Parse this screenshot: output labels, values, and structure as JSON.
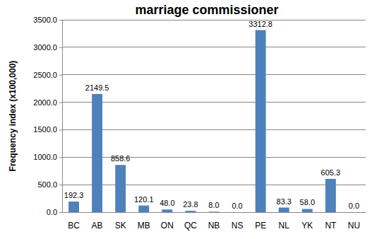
{
  "chart_data": {
    "type": "bar",
    "title": "marriage commissioner",
    "y_label": "Frequency index (x100,000)",
    "categories": [
      "BC",
      "AB",
      "SK",
      "MB",
      "ON",
      "QC",
      "NB",
      "NS",
      "PE",
      "NL",
      "YK",
      "NT",
      "NU"
    ],
    "values": [
      192.3,
      2149.5,
      858.6,
      120.1,
      48.0,
      23.8,
      8.0,
      0.0,
      3312.8,
      83.3,
      58.0,
      605.3,
      0.0
    ],
    "value_labels": [
      "192.3",
      "2149.5",
      "858.6",
      "120.1",
      "48.0",
      "23.8",
      "8.0",
      "0.0",
      "3312.8",
      "83.3",
      "58.0",
      "605.3",
      "0.0"
    ],
    "color": "#4f81bd",
    "ylim": [
      0,
      3500
    ],
    "yticks": [
      {
        "value": 0,
        "label": "0.0"
      },
      {
        "value": 500,
        "label": "500.0"
      },
      {
        "value": 1000,
        "label": "1000.0"
      },
      {
        "value": 1500,
        "label": "1500.0"
      },
      {
        "value": 2000,
        "label": "2000.0"
      },
      {
        "value": 2500,
        "label": "2500.0"
      },
      {
        "value": 3000,
        "label": "3000.0"
      },
      {
        "value": 3500,
        "label": "3500.0"
      }
    ],
    "grid": true,
    "data_labels": true
  }
}
